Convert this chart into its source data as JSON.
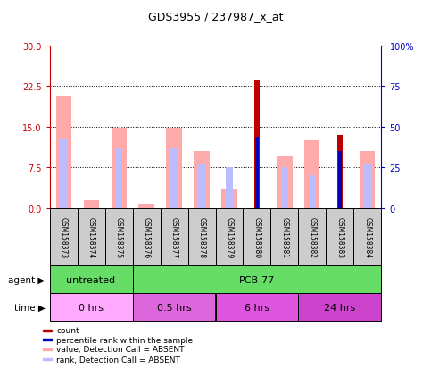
{
  "title": "GDS3955 / 237987_x_at",
  "samples": [
    "GSM158373",
    "GSM158374",
    "GSM158375",
    "GSM158376",
    "GSM158377",
    "GSM158378",
    "GSM158379",
    "GSM158380",
    "GSM158381",
    "GSM158382",
    "GSM158383",
    "GSM158384"
  ],
  "value_absent": [
    20.5,
    1.5,
    14.8,
    0.8,
    14.8,
    10.5,
    3.5,
    0,
    9.5,
    12.5,
    0,
    10.5
  ],
  "rank_absent_pct": [
    42,
    0,
    37,
    0,
    37,
    27,
    25,
    0,
    25,
    20,
    0,
    27
  ],
  "count": [
    0,
    0,
    0,
    0,
    0,
    0,
    0,
    23.5,
    0,
    0,
    13.5,
    0
  ],
  "percentile_rank_pct": [
    0,
    0,
    0,
    0,
    0,
    0,
    0,
    44,
    0,
    0,
    35,
    0
  ],
  "left_axis_ticks": [
    0,
    7.5,
    15,
    22.5,
    30
  ],
  "right_axis_ticks": [
    0,
    25,
    50,
    75,
    100
  ],
  "left_axis_color": "#cc0000",
  "right_axis_color": "#0000cc",
  "value_absent_color": "#ffaaaa",
  "rank_absent_color": "#bbbbff",
  "count_color": "#bb0000",
  "percentile_color": "#0000bb",
  "agent_groups": [
    {
      "label": "untreated",
      "start": 0,
      "end": 3
    },
    {
      "label": "PCB-77",
      "start": 3,
      "end": 12
    }
  ],
  "time_groups": [
    {
      "label": "0 hrs",
      "start": 0,
      "end": 3
    },
    {
      "label": "0.5 hrs",
      "start": 3,
      "end": 6
    },
    {
      "label": "6 hrs",
      "start": 6,
      "end": 9
    },
    {
      "label": "24 hrs",
      "start": 9,
      "end": 12
    }
  ],
  "agent_color": "#66dd66",
  "time_color_0hrs": "#ffaaff",
  "time_color_rest": "#dd55dd",
  "time_colors": [
    "#ffaaff",
    "#dd66dd",
    "#dd55dd",
    "#cc44cc"
  ],
  "sample_box_color": "#cccccc",
  "ylim_left": [
    0,
    30
  ],
  "ylim_right": [
    0,
    100
  ],
  "legend_items": [
    {
      "label": "count",
      "color": "#bb0000"
    },
    {
      "label": "percentile rank within the sample",
      "color": "#0000bb"
    },
    {
      "label": "value, Detection Call = ABSENT",
      "color": "#ffaaaa"
    },
    {
      "label": "rank, Detection Call = ABSENT",
      "color": "#bbbbff"
    }
  ]
}
